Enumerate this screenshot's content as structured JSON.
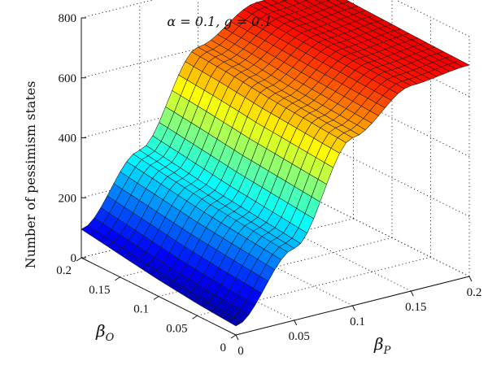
{
  "chart_data": {
    "type": "surface",
    "title": "α = 0.1, g = 0.1",
    "xlabel": "β",
    "xlabel_sub": "P",
    "ylabel": "β",
    "ylabel_sub": "O",
    "zlabel": "Number of pessimism states",
    "xlim": [
      0,
      0.2
    ],
    "ylim": [
      0,
      0.2
    ],
    "zlim": [
      0,
      800
    ],
    "x_ticks": [
      "0",
      "0.05",
      "0.1",
      "0.15",
      "0.2"
    ],
    "y_ticks": [
      "0",
      "0.05",
      "0.1",
      "0.15",
      "0.2"
    ],
    "z_ticks": [
      "0",
      "200",
      "400",
      "600",
      "800"
    ],
    "grid": true,
    "colormap": "jet",
    "x": [
      0,
      0.05,
      0.1,
      0.15,
      0.2
    ],
    "y": [
      0,
      0.05,
      0.1,
      0.15,
      0.2
    ],
    "z": [
      [
        30,
        240,
        560,
        685,
        705
      ],
      [
        40,
        255,
        570,
        690,
        708
      ],
      [
        55,
        270,
        580,
        695,
        712
      ],
      [
        75,
        290,
        595,
        700,
        716
      ],
      [
        95,
        310,
        605,
        705,
        722
      ]
    ]
  }
}
